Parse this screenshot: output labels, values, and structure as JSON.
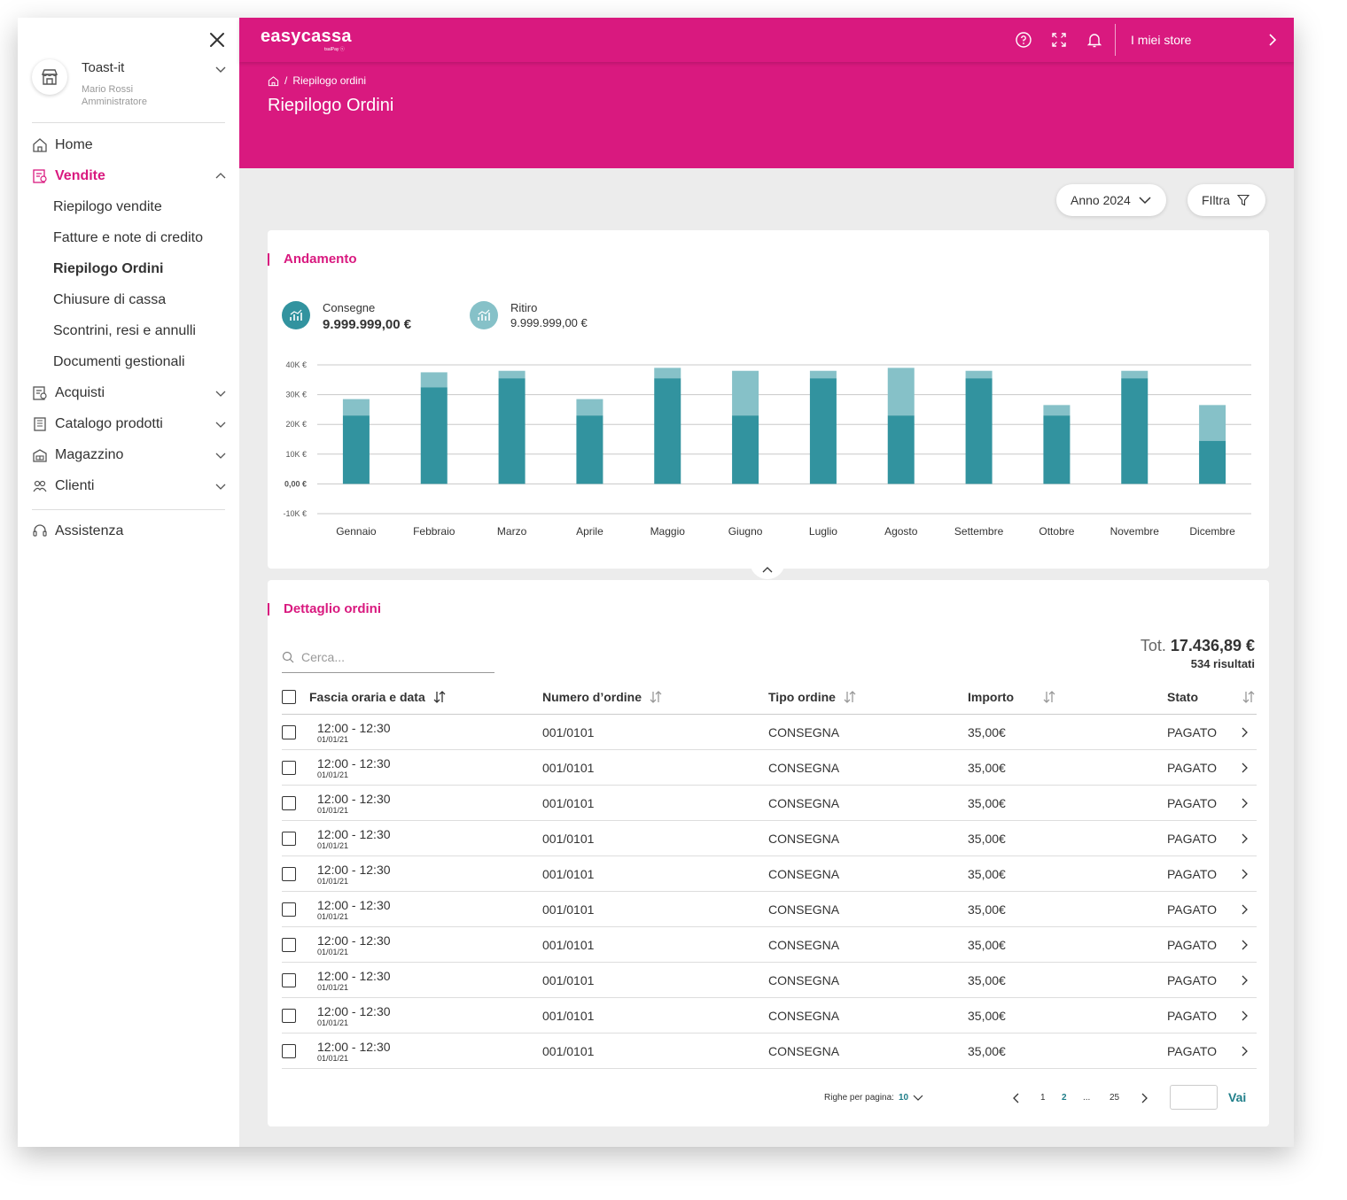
{
  "app": {
    "logo": "easycassa",
    "logo_sub": "tsalPay ⓢ"
  },
  "topbar": {
    "my_stores": "I miei store"
  },
  "sidebar": {
    "store_name": "Toast-it",
    "user_name": "Mario Rossi",
    "user_role": "Amministratore",
    "home": "Home",
    "vendite": "Vendite",
    "vendite_items": [
      "Riepilogo vendite",
      "Fatture e note di credito",
      "Riepilogo Ordini",
      "Chiusure di cassa",
      "Scontrini, resi e annulli",
      "Documenti gestionali"
    ],
    "acquisti": "Acquisti",
    "catalogo": "Catalogo prodotti",
    "magazzino": "Magazzino",
    "clienti": "Clienti",
    "assistenza": "Assistenza"
  },
  "breadcrumb": {
    "current": "Riepilogo ordini"
  },
  "page": {
    "title": "Riepilogo Ordini"
  },
  "filters": {
    "year": "Anno 2024",
    "filter": "FIltra"
  },
  "trend": {
    "title": "Andamento",
    "consegne_label": "Consegne",
    "consegne_value": "9.999.999,00 €",
    "ritiro_label": "Ritiro",
    "ritiro_value": "9.999.999,00 €"
  },
  "chart_data": {
    "type": "bar",
    "stacked": true,
    "categories": [
      "Gennaio",
      "Febbraio",
      "Marzo",
      "Aprile",
      "Maggio",
      "Giugno",
      "Luglio",
      "Agosto",
      "Settembre",
      "Ottobre",
      "Novembre",
      "Dicembre"
    ],
    "series": [
      {
        "name": "Consegne",
        "color": "#32939f",
        "values": [
          23000,
          32500,
          35500,
          23000,
          35500,
          23000,
          35500,
          23000,
          35500,
          23000,
          35500,
          14500
        ]
      },
      {
        "name": "Ritiro",
        "color": "#86c1c8",
        "values": [
          5500,
          5000,
          2500,
          5500,
          3500,
          15000,
          2500,
          16000,
          2500,
          3500,
          2500,
          12000
        ]
      }
    ],
    "yticks": [
      "40K €",
      "30K €",
      "20K €",
      "10K €",
      "0,00 €",
      "-10K €"
    ],
    "ytick_values": [
      40000,
      30000,
      20000,
      10000,
      0,
      -10000
    ],
    "ylim": [
      -10000,
      40000
    ],
    "grid": true
  },
  "orders": {
    "title": "Dettaglio ordini",
    "search_placeholder": "Cerca...",
    "total_prefix": "Tot.",
    "total_value": "17.436,89 €",
    "results": "534 risultati",
    "columns": [
      "Fascia oraria e data",
      "Numero d’ordine",
      "Tipo ordine",
      "Importo",
      "Stato"
    ],
    "rows": [
      {
        "time": "12:00 - 12:30",
        "date": "01/01/21",
        "number": "001/0101",
        "type": "CONSEGNA",
        "amount": "35,00€",
        "status": "PAGATO"
      },
      {
        "time": "12:00 - 12:30",
        "date": "01/01/21",
        "number": "001/0101",
        "type": "CONSEGNA",
        "amount": "35,00€",
        "status": "PAGATO"
      },
      {
        "time": "12:00 - 12:30",
        "date": "01/01/21",
        "number": "001/0101",
        "type": "CONSEGNA",
        "amount": "35,00€",
        "status": "PAGATO"
      },
      {
        "time": "12:00 - 12:30",
        "date": "01/01/21",
        "number": "001/0101",
        "type": "CONSEGNA",
        "amount": "35,00€",
        "status": "PAGATO"
      },
      {
        "time": "12:00 - 12:30",
        "date": "01/01/21",
        "number": "001/0101",
        "type": "CONSEGNA",
        "amount": "35,00€",
        "status": "PAGATO"
      },
      {
        "time": "12:00 - 12:30",
        "date": "01/01/21",
        "number": "001/0101",
        "type": "CONSEGNA",
        "amount": "35,00€",
        "status": "PAGATO"
      },
      {
        "time": "12:00 - 12:30",
        "date": "01/01/21",
        "number": "001/0101",
        "type": "CONSEGNA",
        "amount": "35,00€",
        "status": "PAGATO"
      },
      {
        "time": "12:00 - 12:30",
        "date": "01/01/21",
        "number": "001/0101",
        "type": "CONSEGNA",
        "amount": "35,00€",
        "status": "PAGATO"
      },
      {
        "time": "12:00 - 12:30",
        "date": "01/01/21",
        "number": "001/0101",
        "type": "CONSEGNA",
        "amount": "35,00€",
        "status": "PAGATO"
      },
      {
        "time": "12:00 - 12:30",
        "date": "01/01/21",
        "number": "001/0101",
        "type": "CONSEGNA",
        "amount": "35,00€",
        "status": "PAGATO"
      }
    ]
  },
  "pagination": {
    "rows_label": "Righe per pagina:",
    "rows_value": "10",
    "pages": [
      "1",
      "2",
      "...",
      "25"
    ],
    "current_page": "2",
    "go_label": "Vai"
  },
  "colors": {
    "brand": "#d9197f",
    "teal_dark": "#32939f",
    "teal_light": "#86c1c8",
    "accent_text": "#1f7e89"
  }
}
